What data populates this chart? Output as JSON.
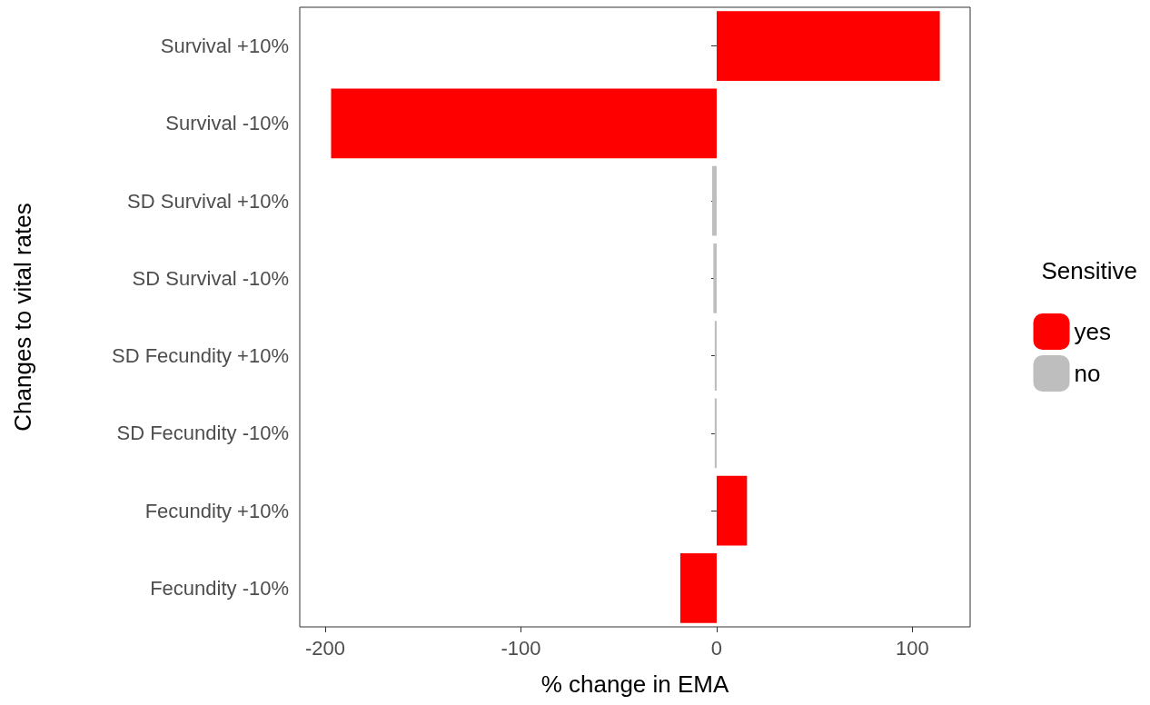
{
  "chart_data": {
    "type": "bar",
    "orientation": "horizontal",
    "xlabel": "% change in EMA",
    "ylabel": "Changes to vital rates",
    "legend_title": "Sensitive",
    "legend": "right",
    "categories": [
      "Survival +10%",
      "Survival -10%",
      "SD Survival +10%",
      "SD Survival -10%",
      "SD Fecundity +10%",
      "SD Fecundity -10%",
      "Fecundity +10%",
      "Fecundity -10%"
    ],
    "series": [
      {
        "name": "yes",
        "color": "#ff0000",
        "values": [
          114,
          -197,
          null,
          null,
          null,
          null,
          15.5,
          -18.6
        ]
      },
      {
        "name": "no",
        "color": "#bebebe",
        "values": [
          null,
          null,
          -2.3,
          -1.7,
          -1.0,
          -1.0,
          null,
          null
        ]
      }
    ],
    "xlim": [
      -213,
      129.5
    ],
    "xticks": [
      -200,
      -100,
      0,
      100
    ],
    "grid": false
  }
}
